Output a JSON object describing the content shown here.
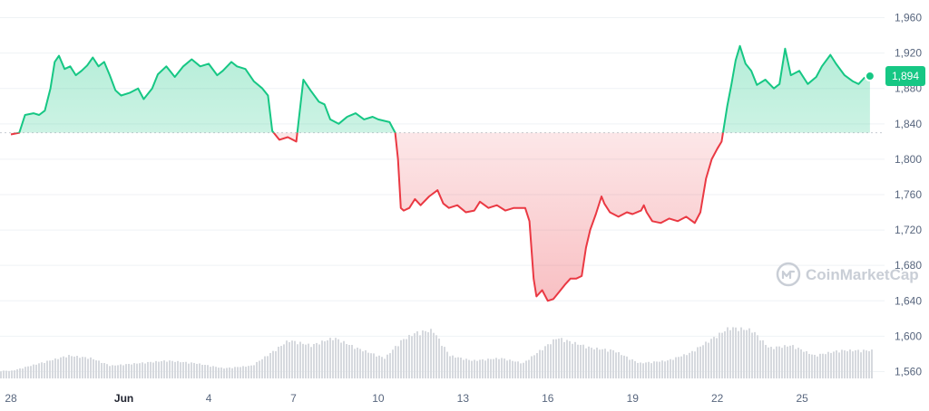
{
  "watermark": {
    "text": "CoinMarketCap",
    "icon": "coinmarketcap-logo-icon"
  },
  "colors": {
    "up": "#16c784",
    "down": "#ea3943",
    "grid": "#eff2f5",
    "baseline": "#c8ccd2",
    "volume": "#d6d9de",
    "axis_text": "#58667e"
  },
  "chart_data": {
    "type": "area",
    "title": "",
    "xlabel": "",
    "ylabel": "",
    "ylim": [
      1540,
      1980
    ],
    "yticks": [
      1560,
      1600,
      1640,
      1680,
      1720,
      1760,
      1800,
      1840,
      1880,
      1920,
      1960
    ],
    "ytick_labels": [
      "1,560",
      "1,600",
      "1,640",
      "1,680",
      "1,720",
      "1,760",
      "1,800",
      "1,840",
      "1,880",
      "1,920",
      "1,960"
    ],
    "x_domain": [
      0,
      30.5
    ],
    "x_unit": "days from May 28",
    "xticks": [
      {
        "x": 0,
        "label": "28",
        "bold": false
      },
      {
        "x": 4,
        "label": "Jun",
        "bold": true
      },
      {
        "x": 7,
        "label": "4",
        "bold": false
      },
      {
        "x": 10,
        "label": "7",
        "bold": false
      },
      {
        "x": 13,
        "label": "10",
        "bold": false
      },
      {
        "x": 16,
        "label": "13",
        "bold": false
      },
      {
        "x": 19,
        "label": "16",
        "bold": false
      },
      {
        "x": 22,
        "label": "19",
        "bold": false
      },
      {
        "x": 25,
        "label": "22",
        "bold": false
      },
      {
        "x": 28,
        "label": "25",
        "bold": false
      }
    ],
    "baseline": 1830,
    "last_value": 1894,
    "last_label": "1,894",
    "grid": true,
    "series": [
      {
        "points": [
          [
            0.0,
            1828
          ],
          [
            0.3,
            1830
          ],
          [
            0.5,
            1850
          ],
          [
            0.8,
            1852
          ],
          [
            1.0,
            1850
          ],
          [
            1.2,
            1855
          ],
          [
            1.4,
            1880
          ],
          [
            1.55,
            1910
          ],
          [
            1.7,
            1917
          ],
          [
            1.9,
            1902
          ],
          [
            2.1,
            1905
          ],
          [
            2.3,
            1895
          ],
          [
            2.5,
            1900
          ],
          [
            2.7,
            1906
          ],
          [
            2.9,
            1915
          ],
          [
            3.1,
            1905
          ],
          [
            3.3,
            1910
          ],
          [
            3.5,
            1895
          ],
          [
            3.7,
            1878
          ],
          [
            3.9,
            1872
          ],
          [
            4.2,
            1875
          ],
          [
            4.5,
            1880
          ],
          [
            4.7,
            1868
          ],
          [
            5.0,
            1880
          ],
          [
            5.2,
            1896
          ],
          [
            5.5,
            1905
          ],
          [
            5.8,
            1893
          ],
          [
            6.1,
            1905
          ],
          [
            6.4,
            1913
          ],
          [
            6.7,
            1905
          ],
          [
            7.0,
            1908
          ],
          [
            7.3,
            1895
          ],
          [
            7.5,
            1900
          ],
          [
            7.8,
            1910
          ],
          [
            8.0,
            1905
          ],
          [
            8.3,
            1902
          ],
          [
            8.6,
            1888
          ],
          [
            8.9,
            1880
          ],
          [
            9.1,
            1872
          ],
          [
            9.25,
            1832
          ],
          [
            9.5,
            1822
          ],
          [
            9.8,
            1825
          ],
          [
            10.1,
            1820
          ],
          [
            10.2,
            1848
          ],
          [
            10.35,
            1890
          ],
          [
            10.6,
            1878
          ],
          [
            10.9,
            1865
          ],
          [
            11.1,
            1862
          ],
          [
            11.3,
            1845
          ],
          [
            11.6,
            1840
          ],
          [
            11.9,
            1848
          ],
          [
            12.2,
            1852
          ],
          [
            12.5,
            1845
          ],
          [
            12.8,
            1848
          ],
          [
            13.0,
            1845
          ],
          [
            13.4,
            1842
          ],
          [
            13.6,
            1830
          ],
          [
            13.7,
            1800
          ],
          [
            13.8,
            1745
          ],
          [
            13.9,
            1742
          ],
          [
            14.1,
            1745
          ],
          [
            14.3,
            1755
          ],
          [
            14.5,
            1748
          ],
          [
            14.8,
            1758
          ],
          [
            15.1,
            1765
          ],
          [
            15.3,
            1750
          ],
          [
            15.5,
            1745
          ],
          [
            15.8,
            1748
          ],
          [
            16.1,
            1740
          ],
          [
            16.4,
            1742
          ],
          [
            16.6,
            1752
          ],
          [
            16.9,
            1745
          ],
          [
            17.2,
            1748
          ],
          [
            17.5,
            1742
          ],
          [
            17.8,
            1745
          ],
          [
            18.0,
            1745
          ],
          [
            18.2,
            1745
          ],
          [
            18.35,
            1730
          ],
          [
            18.5,
            1665
          ],
          [
            18.6,
            1645
          ],
          [
            18.8,
            1652
          ],
          [
            19.0,
            1640
          ],
          [
            19.2,
            1642
          ],
          [
            19.4,
            1650
          ],
          [
            19.6,
            1658
          ],
          [
            19.8,
            1665
          ],
          [
            20.0,
            1665
          ],
          [
            20.2,
            1668
          ],
          [
            20.35,
            1700
          ],
          [
            20.5,
            1720
          ],
          [
            20.7,
            1738
          ],
          [
            20.9,
            1758
          ],
          [
            21.0,
            1750
          ],
          [
            21.2,
            1740
          ],
          [
            21.5,
            1735
          ],
          [
            21.8,
            1740
          ],
          [
            22.0,
            1738
          ],
          [
            22.3,
            1742
          ],
          [
            22.4,
            1748
          ],
          [
            22.5,
            1740
          ],
          [
            22.7,
            1730
          ],
          [
            23.0,
            1728
          ],
          [
            23.3,
            1733
          ],
          [
            23.6,
            1730
          ],
          [
            23.9,
            1735
          ],
          [
            24.2,
            1728
          ],
          [
            24.4,
            1740
          ],
          [
            24.6,
            1778
          ],
          [
            24.8,
            1800
          ],
          [
            25.0,
            1812
          ],
          [
            25.15,
            1820
          ],
          [
            25.35,
            1860
          ],
          [
            25.5,
            1885
          ],
          [
            25.65,
            1912
          ],
          [
            25.8,
            1928
          ],
          [
            26.0,
            1908
          ],
          [
            26.2,
            1900
          ],
          [
            26.4,
            1884
          ],
          [
            26.7,
            1890
          ],
          [
            27.0,
            1880
          ],
          [
            27.2,
            1885
          ],
          [
            27.4,
            1925
          ],
          [
            27.6,
            1895
          ],
          [
            27.9,
            1900
          ],
          [
            28.2,
            1885
          ],
          [
            28.5,
            1893
          ],
          [
            28.7,
            1905
          ],
          [
            29.0,
            1918
          ],
          [
            29.2,
            1908
          ],
          [
            29.5,
            1895
          ],
          [
            29.8,
            1888
          ],
          [
            30.0,
            1885
          ],
          [
            30.2,
            1892
          ],
          [
            30.4,
            1894
          ]
        ]
      }
    ],
    "volume_profile": [
      [
        0.0,
        0.15
      ],
      [
        1.0,
        0.3
      ],
      [
        2.0,
        0.45
      ],
      [
        2.8,
        0.4
      ],
      [
        3.5,
        0.25
      ],
      [
        4.5,
        0.3
      ],
      [
        5.5,
        0.35
      ],
      [
        6.5,
        0.3
      ],
      [
        7.5,
        0.2
      ],
      [
        8.5,
        0.25
      ],
      [
        9.3,
        0.55
      ],
      [
        9.8,
        0.75
      ],
      [
        10.6,
        0.65
      ],
      [
        11.4,
        0.8
      ],
      [
        12.2,
        0.6
      ],
      [
        13.2,
        0.4
      ],
      [
        13.8,
        0.75
      ],
      [
        14.3,
        0.9
      ],
      [
        14.9,
        0.95
      ],
      [
        15.5,
        0.45
      ],
      [
        16.3,
        0.35
      ],
      [
        17.3,
        0.4
      ],
      [
        18.1,
        0.3
      ],
      [
        18.7,
        0.55
      ],
      [
        19.3,
        0.8
      ],
      [
        19.9,
        0.7
      ],
      [
        20.5,
        0.6
      ],
      [
        21.3,
        0.55
      ],
      [
        22.2,
        0.3
      ],
      [
        23.2,
        0.35
      ],
      [
        24.0,
        0.5
      ],
      [
        24.7,
        0.75
      ],
      [
        25.4,
        1.0
      ],
      [
        26.2,
        0.95
      ],
      [
        26.8,
        0.6
      ],
      [
        27.6,
        0.65
      ],
      [
        28.4,
        0.45
      ],
      [
        29.3,
        0.55
      ],
      [
        30.4,
        0.55
      ]
    ]
  }
}
